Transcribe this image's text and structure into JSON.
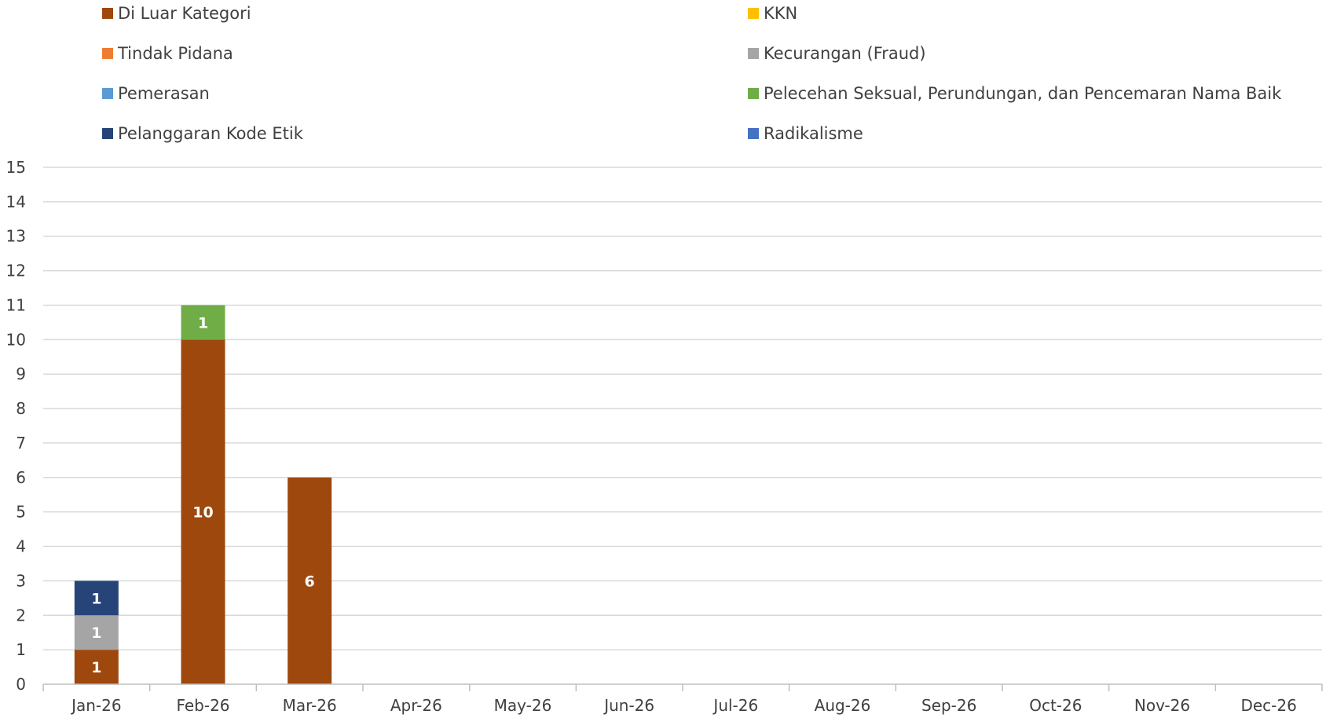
{
  "chart_data": {
    "type": "bar",
    "stacked": true,
    "categories": [
      "Jan-26",
      "Feb-26",
      "Mar-26",
      "Apr-26",
      "May-26",
      "Jun-26",
      "Jul-26",
      "Aug-26",
      "Sep-26",
      "Oct-26",
      "Nov-26",
      "Dec-26"
    ],
    "ylim": [
      0,
      15
    ],
    "ytick_step": 1,
    "grid": true,
    "legend_placement": "top",
    "series": [
      {
        "name": "Di Luar Kategori",
        "color": "#9E480E",
        "values": [
          1,
          10,
          6,
          0,
          0,
          0,
          0,
          0,
          0,
          0,
          0,
          0
        ]
      },
      {
        "name": "KKN",
        "color": "#FFC000",
        "values": [
          0,
          0,
          0,
          0,
          0,
          0,
          0,
          0,
          0,
          0,
          0,
          0
        ]
      },
      {
        "name": "Tindak Pidana",
        "color": "#ED7D31",
        "values": [
          0,
          0,
          0,
          0,
          0,
          0,
          0,
          0,
          0,
          0,
          0,
          0
        ]
      },
      {
        "name": "Kecurangan (Fraud)",
        "color": "#A5A5A5",
        "values": [
          1,
          0,
          0,
          0,
          0,
          0,
          0,
          0,
          0,
          0,
          0,
          0
        ]
      },
      {
        "name": "Pemerasan",
        "color": "#5B9BD5",
        "values": [
          0,
          0,
          0,
          0,
          0,
          0,
          0,
          0,
          0,
          0,
          0,
          0
        ]
      },
      {
        "name": "Pelecehan Seksual, Perundungan, dan Pencemaran Nama Baik",
        "color": "#70AD47",
        "values": [
          0,
          1,
          0,
          0,
          0,
          0,
          0,
          0,
          0,
          0,
          0,
          0
        ]
      },
      {
        "name": "Pelanggaran Kode Etik",
        "color": "#264478",
        "values": [
          1,
          0,
          0,
          0,
          0,
          0,
          0,
          0,
          0,
          0,
          0,
          0
        ]
      },
      {
        "name": "Radikalisme",
        "color": "#4472C4",
        "values": [
          0,
          0,
          0,
          0,
          0,
          0,
          0,
          0,
          0,
          0,
          0,
          0
        ]
      }
    ],
    "stack_order": [
      "Di Luar Kategori",
      "Kecurangan (Fraud)",
      "Pelanggaran Kode Etik",
      "Pelecehan Seksual, Perundungan, dan Pencemaran Nama Baik",
      "KKN",
      "Tindak Pidana",
      "Pemerasan",
      "Radikalisme"
    ]
  }
}
